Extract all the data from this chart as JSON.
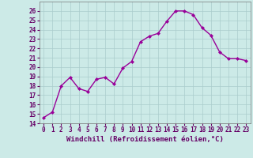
{
  "x": [
    0,
    1,
    2,
    3,
    4,
    5,
    6,
    7,
    8,
    9,
    10,
    11,
    12,
    13,
    14,
    15,
    16,
    17,
    18,
    19,
    20,
    21,
    22,
    23
  ],
  "y": [
    14.6,
    15.2,
    18.0,
    18.9,
    17.7,
    17.4,
    18.7,
    18.9,
    18.2,
    19.9,
    20.6,
    22.7,
    23.3,
    23.6,
    24.9,
    26.0,
    26.0,
    25.6,
    24.2,
    23.4,
    21.6,
    20.9,
    20.9,
    20.7
  ],
  "line_color": "#990099",
  "marker": "D",
  "markersize": 2,
  "background_color": "#cceae7",
  "grid_color": "#aacccc",
  "xlabel": "Windchill (Refroidissement éolien,°C)",
  "xlabel_color": "#660066",
  "tick_color": "#660066",
  "ylim": [
    14,
    27
  ],
  "xlim": [
    -0.5,
    23.5
  ],
  "yticks": [
    14,
    15,
    16,
    17,
    18,
    19,
    20,
    21,
    22,
    23,
    24,
    25,
    26
  ],
  "xticks": [
    0,
    1,
    2,
    3,
    4,
    5,
    6,
    7,
    8,
    9,
    10,
    11,
    12,
    13,
    14,
    15,
    16,
    17,
    18,
    19,
    20,
    21,
    22,
    23
  ],
  "linewidth": 1.0,
  "tick_fontsize": 5.5,
  "xlabel_fontsize": 6.5
}
